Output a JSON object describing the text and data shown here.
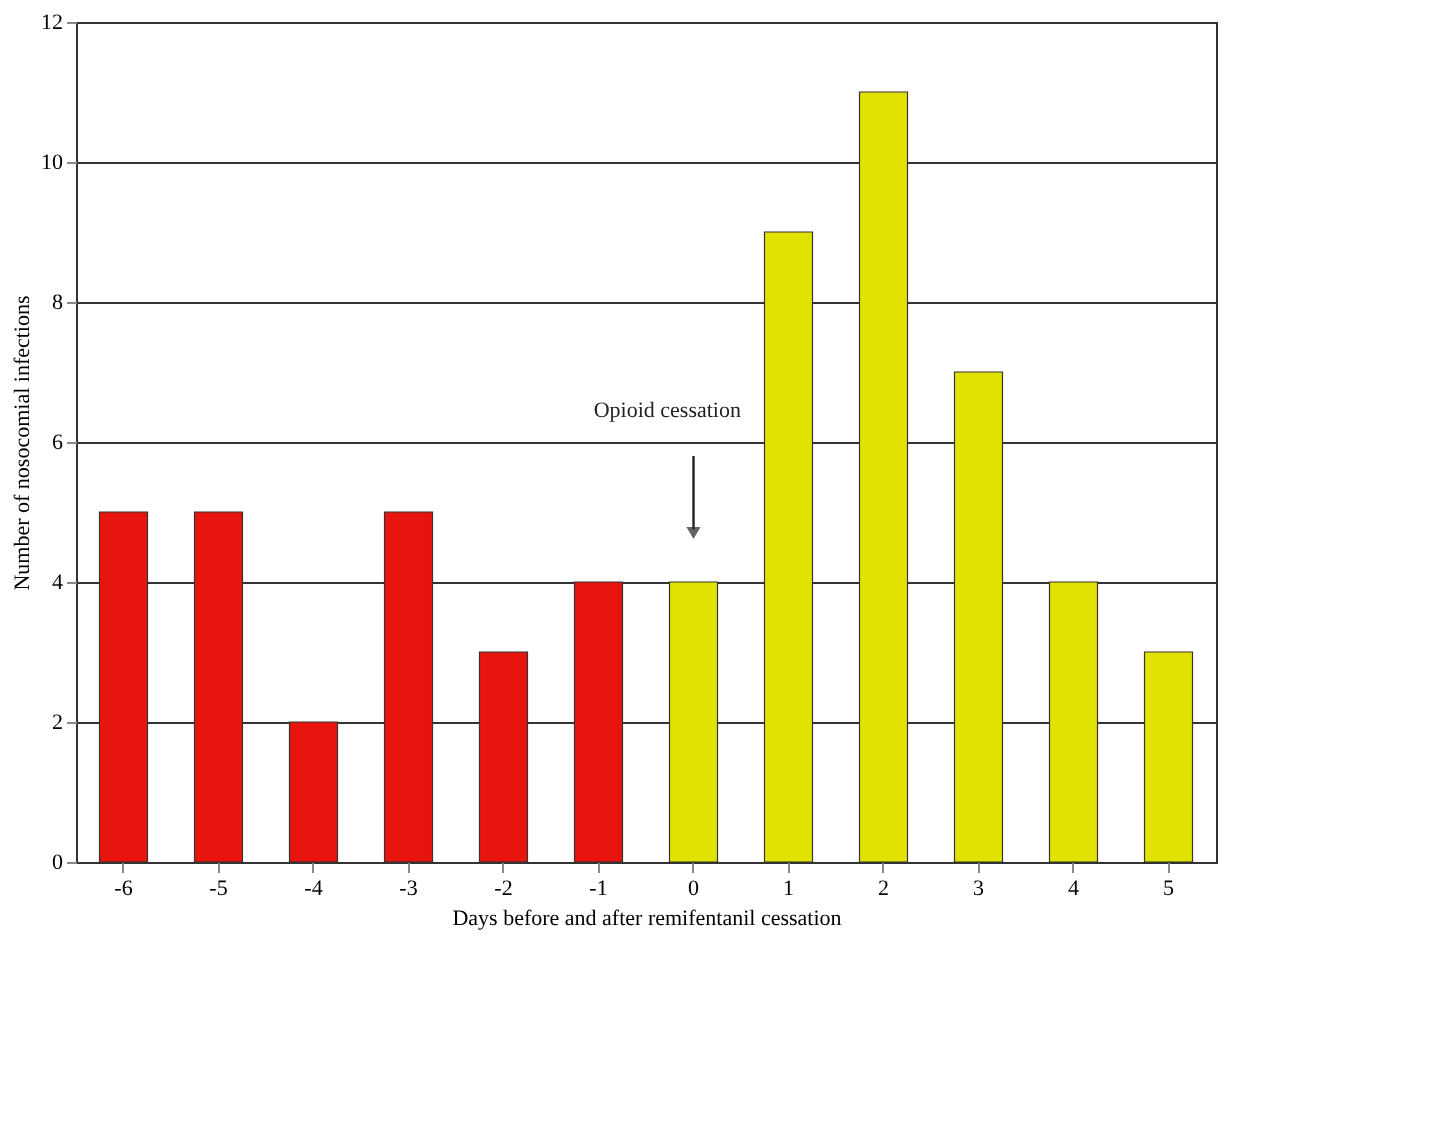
{
  "chart_data": {
    "type": "bar",
    "xlabel": "Days before and after remifentanil cessation",
    "ylabel": "Number of nosocomial infections",
    "categories": [
      "-6",
      "-5",
      "-4",
      "-3",
      "-2",
      "-1",
      "0",
      "1",
      "2",
      "3",
      "4",
      "5"
    ],
    "values": [
      5,
      5,
      2,
      5,
      3,
      4,
      4,
      9,
      11,
      7,
      4,
      3
    ],
    "colors": [
      "#e8150f",
      "#e8150f",
      "#e8150f",
      "#e8150f",
      "#e8150f",
      "#e8150f",
      "#e2e200",
      "#e2e200",
      "#e2e200",
      "#e2e200",
      "#e2e200",
      "#e2e200"
    ],
    "ylim": [
      0,
      12
    ],
    "yticks": [
      0,
      2,
      4,
      6,
      8,
      10,
      12
    ],
    "grid": "y",
    "annotations": [
      "Opioid cessation"
    ]
  }
}
